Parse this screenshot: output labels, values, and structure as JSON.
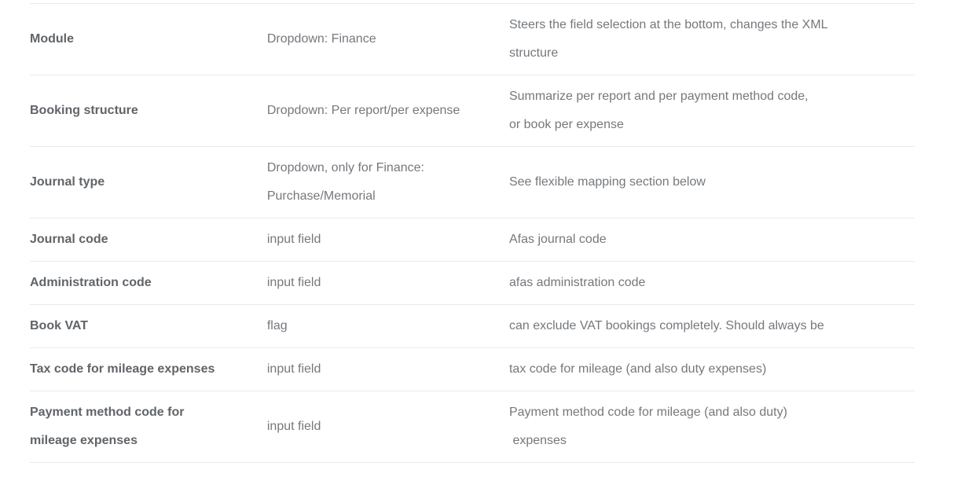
{
  "colors": {
    "background": "#ffffff",
    "divider": "#eaeaea",
    "field_label_text": "#616468",
    "body_text": "#75787c"
  },
  "table": {
    "rows": [
      {
        "field": "Module",
        "type": "Dropdown: Finance",
        "description": [
          "Steers the field selection at the bottom, changes the XML",
          "structure"
        ]
      },
      {
        "field": "Booking structure",
        "type": "Dropdown: Per report/per expense",
        "description": [
          "Summarize per report and per payment method code,",
          "or book per expense"
        ]
      },
      {
        "field": "Journal type",
        "type": [
          "Dropdown, only for Finance:",
          "Purchase/Memorial"
        ],
        "description": "See flexible mapping section below"
      },
      {
        "field": "Journal code",
        "type": "input field",
        "description": "Afas journal code"
      },
      {
        "field": "Administration code",
        "type": "input field",
        "description": "afas administration code"
      },
      {
        "field": "Book VAT",
        "type": "flag",
        "description": "can exclude VAT bookings completely. Should always be"
      },
      {
        "field": "Tax code for mileage expenses",
        "type": "input field",
        "description": "tax code for mileage (and also duty expenses)"
      },
      {
        "field": [
          "Payment method code for",
          "mileage expenses"
        ],
        "type": "input field",
        "description": [
          "Payment method code for mileage (and also duty)",
          " expenses"
        ]
      }
    ]
  }
}
